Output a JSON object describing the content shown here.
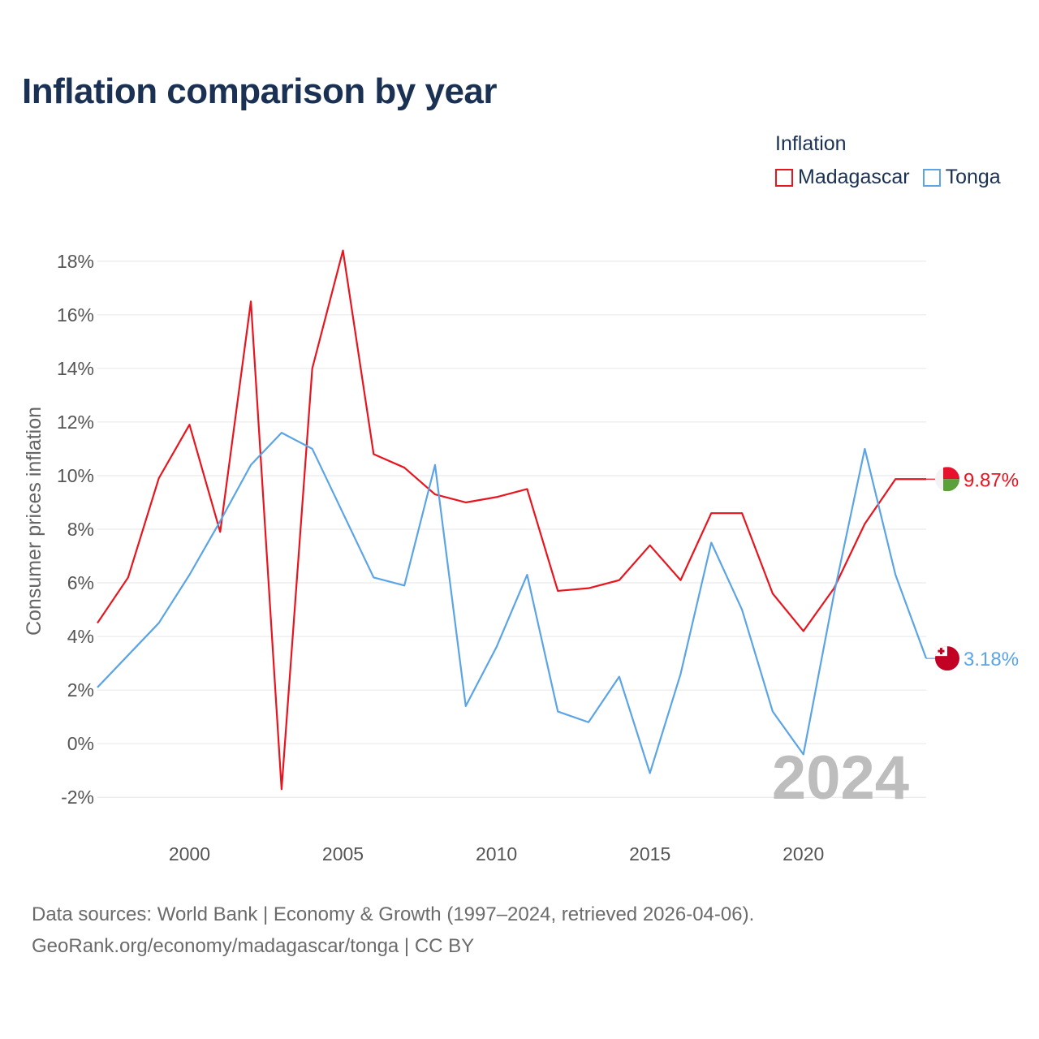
{
  "title": "Inflation comparison by year",
  "legend": {
    "title": "Inflation",
    "items": [
      {
        "label": "Madagascar",
        "color": "#e8141e"
      },
      {
        "label": "Tonga",
        "color": "#5ba4e5"
      }
    ]
  },
  "year_watermark": "2024",
  "end_labels": {
    "madagascar": "9.87%",
    "tonga": "3.18%"
  },
  "source": {
    "line1": "Data sources: World Bank | Economy & Growth (1997–2024, retrieved 2026-04-06).",
    "line2": "GeoRank.org/economy/madagascar/tonga | CC BY"
  },
  "colors": {
    "madagascar": "#e8141e",
    "tonga": "#5ba4e5",
    "grid": "#e6e6e6",
    "axis_text": "#555555"
  },
  "chart_data": {
    "type": "line",
    "title": "Inflation comparison by year",
    "xlabel": "",
    "ylabel": "Consumer prices inflation",
    "x": [
      1997,
      1998,
      1999,
      2000,
      2001,
      2002,
      2003,
      2004,
      2005,
      2006,
      2007,
      2008,
      2009,
      2010,
      2011,
      2012,
      2013,
      2014,
      2015,
      2016,
      2017,
      2018,
      2019,
      2020,
      2021,
      2022,
      2023,
      2024
    ],
    "xticks": [
      2000,
      2005,
      2010,
      2015,
      2020
    ],
    "xlim": [
      1997,
      2024
    ],
    "ylim": [
      -2.6,
      18.6
    ],
    "yticks": [
      -2,
      0,
      2,
      4,
      6,
      8,
      10,
      12,
      14,
      16,
      18
    ],
    "ytick_labels": [
      "-2%",
      "0%",
      "2%",
      "4%",
      "6%",
      "8%",
      "10%",
      "12%",
      "14%",
      "16%",
      "18%"
    ],
    "grid": true,
    "legend_position": "top-right",
    "series": [
      {
        "name": "Madagascar",
        "color": "#e8141e",
        "values": [
          4.5,
          6.2,
          9.9,
          11.9,
          7.9,
          16.5,
          -1.7,
          14.0,
          18.4,
          10.8,
          10.3,
          9.3,
          9.0,
          9.2,
          9.5,
          5.7,
          5.8,
          6.1,
          7.4,
          6.1,
          8.6,
          8.6,
          5.6,
          4.2,
          5.8,
          8.2,
          9.87,
          9.87
        ]
      },
      {
        "name": "Tonga",
        "color": "#5ba4e5",
        "values": [
          2.1,
          3.3,
          4.5,
          6.3,
          8.3,
          10.4,
          11.6,
          11.0,
          8.6,
          6.2,
          5.9,
          10.4,
          1.4,
          3.6,
          6.3,
          1.2,
          0.8,
          2.5,
          -1.1,
          2.6,
          7.5,
          5.0,
          1.2,
          -0.4,
          5.6,
          11.0,
          6.3,
          3.18
        ]
      }
    ]
  }
}
